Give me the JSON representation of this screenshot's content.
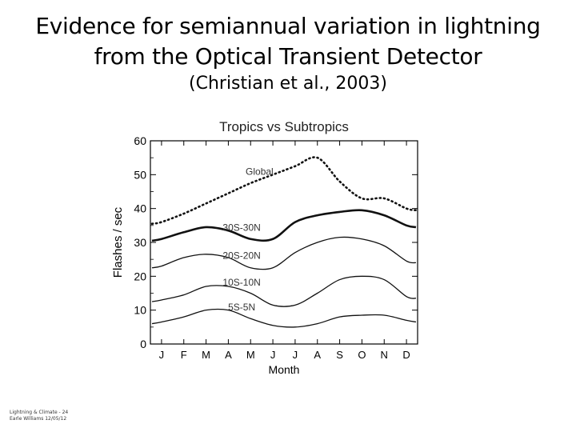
{
  "slide": {
    "title_line1": "Evidence for semiannual variation in lightning",
    "title_line2": "from the Optical Transient Detector",
    "subtitle": "(Christian et al., 2003)",
    "footer_line1": "Lightning & Climate - 24",
    "footer_line2": "Earle Williams 12/05/12"
  },
  "chart_data": {
    "type": "line",
    "title": "Tropics vs Subtropics",
    "xlabel": "Month",
    "ylabel": "Flashes / sec",
    "categories": [
      "J",
      "F",
      "M",
      "A",
      "M",
      "J",
      "J",
      "A",
      "S",
      "O",
      "N",
      "D"
    ],
    "yticks": [
      0,
      10,
      20,
      30,
      40,
      50,
      60
    ],
    "ylim": [
      0,
      60
    ],
    "series": [
      {
        "name": "Global",
        "style": "dotted",
        "label_at_month": 4.4,
        "values": [
          36,
          38.5,
          41.5,
          44.5,
          47.5,
          50,
          52.5,
          55,
          48,
          43,
          43,
          40
        ]
      },
      {
        "name": "30S-30N",
        "style": "thick",
        "label_at_month": 3.6,
        "values": [
          31,
          33,
          34.5,
          33.5,
          31,
          31,
          36,
          38,
          39,
          39.5,
          38,
          35
        ]
      },
      {
        "name": "20S-20N",
        "style": "solid",
        "label_at_month": 3.6,
        "values": [
          23,
          25.5,
          26.5,
          25.5,
          22.5,
          22.5,
          27,
          30,
          31.5,
          31,
          29,
          24.5
        ]
      },
      {
        "name": "10S-10N",
        "style": "solid",
        "label_at_month": 3.6,
        "values": [
          13,
          14.5,
          17,
          17,
          15,
          11.5,
          11.5,
          15,
          19,
          20,
          19,
          14
        ]
      },
      {
        "name": "5S-5N",
        "style": "solid",
        "label_at_month": 3.6,
        "values": [
          6.5,
          8,
          10,
          10,
          7.5,
          5.5,
          5,
          6,
          8,
          8.5,
          8.5,
          7
        ]
      }
    ]
  }
}
